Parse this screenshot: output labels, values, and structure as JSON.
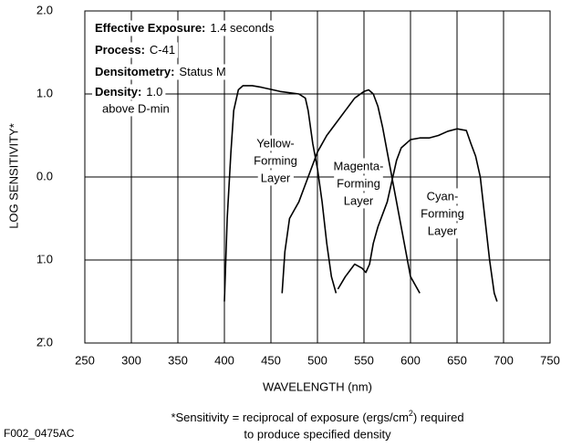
{
  "chart_data": {
    "type": "line",
    "x_label": "WAVELENGTH (nm)",
    "y_label": "LOG SENSITIVITY*",
    "xlim": [
      250,
      750
    ],
    "xticks": [
      250,
      300,
      350,
      400,
      450,
      500,
      550,
      600,
      650,
      700,
      750
    ],
    "ylim": [
      -2,
      2
    ],
    "yticks": [
      {
        "value": -2,
        "label": "2̄.0"
      },
      {
        "value": -1,
        "label": "1̄.0"
      },
      {
        "value": 0,
        "label": "0.0"
      },
      {
        "value": 1,
        "label": "1.0"
      },
      {
        "value": 2,
        "label": "2.0"
      }
    ],
    "grid": true,
    "annotations": [
      {
        "label": "Effective Exposure:",
        "value": "1.4 seconds"
      },
      {
        "label": "Process:",
        "value": "C-41"
      },
      {
        "label": "Densitometry:",
        "value": "Status M"
      },
      {
        "label": "Density:",
        "value": "1.0"
      }
    ],
    "annotation_note": "above D-min",
    "series": [
      {
        "label": [
          "Yellow-",
          "Forming",
          "Layer"
        ],
        "color": "#000000",
        "x": [
          400,
          403,
          407,
          410,
          415,
          420,
          430,
          440,
          460,
          480,
          487,
          490,
          495,
          500,
          505,
          510,
          515,
          520
        ],
        "values": [
          -1.5,
          -0.5,
          0.3,
          0.8,
          1.05,
          1.1,
          1.1,
          1.08,
          1.03,
          1.0,
          0.95,
          0.8,
          0.4,
          0.1,
          -0.3,
          -0.8,
          -1.2,
          -1.4
        ]
      },
      {
        "label": [
          "Magenta-",
          "Forming",
          "Layer"
        ],
        "color": "#000000",
        "x": [
          462,
          465,
          470,
          475,
          480,
          490,
          500,
          510,
          520,
          530,
          540,
          550,
          555,
          560,
          565,
          570,
          575,
          580,
          585,
          590,
          600,
          610
        ],
        "values": [
          -1.4,
          -0.9,
          -0.5,
          -0.4,
          -0.3,
          0.0,
          0.3,
          0.5,
          0.65,
          0.8,
          0.95,
          1.03,
          1.05,
          1.0,
          0.85,
          0.6,
          0.3,
          0.0,
          -0.3,
          -0.6,
          -1.2,
          -1.4
        ]
      },
      {
        "label": [
          "Cyan-",
          "Forming",
          "Layer"
        ],
        "color": "#000000",
        "x": [
          522,
          530,
          540,
          548,
          552,
          556,
          560,
          565,
          570,
          575,
          580,
          585,
          590,
          600,
          610,
          620,
          630,
          640,
          650,
          660,
          665,
          670,
          675,
          680,
          685,
          690,
          693
        ],
        "values": [
          -1.35,
          -1.2,
          -1.05,
          -1.1,
          -1.15,
          -1.05,
          -0.8,
          -0.6,
          -0.45,
          -0.3,
          -0.05,
          0.2,
          0.35,
          0.45,
          0.47,
          0.47,
          0.5,
          0.55,
          0.58,
          0.56,
          0.4,
          0.25,
          0.0,
          -0.5,
          -1.0,
          -1.4,
          -1.5
        ]
      }
    ],
    "footnote": [
      "*Sensitivity = reciprocal of exposure (ergs/cm",
      "2",
      ") required"
    ],
    "footnote_line2": "to produce specified density",
    "figure_code": "F002_0475AC"
  }
}
